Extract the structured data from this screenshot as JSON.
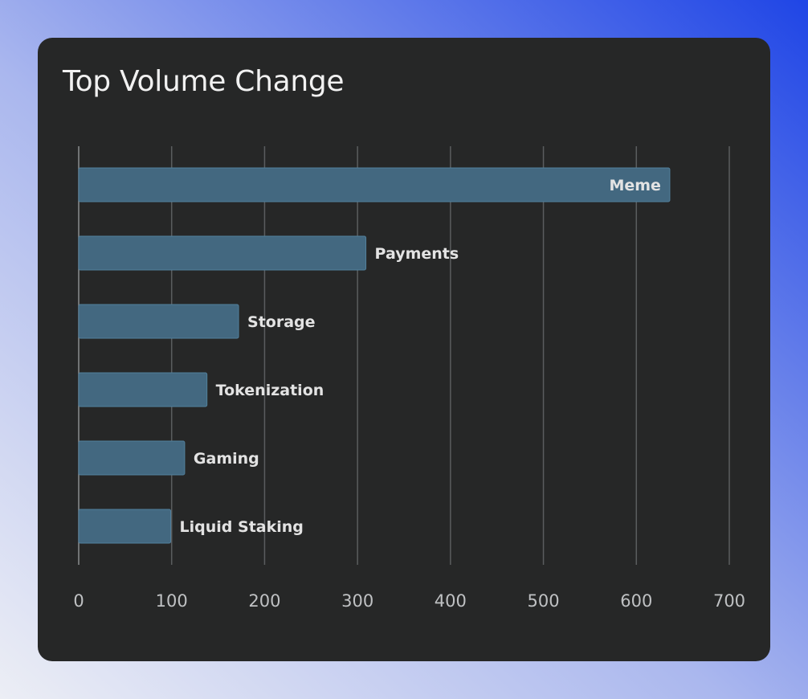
{
  "card": {
    "title": "Top Volume Change"
  },
  "chart_data": {
    "type": "bar",
    "orientation": "horizontal",
    "title": "Top Volume Change",
    "xlabel": "",
    "ylabel": "",
    "categories": [
      "Meme",
      "Payments",
      "Storage",
      "Tokenization",
      "Gaming",
      "Liquid Staking"
    ],
    "values": [
      636,
      309,
      172,
      138,
      114,
      99
    ],
    "xlim": [
      0,
      700
    ],
    "xticks": [
      0,
      100,
      200,
      300,
      400,
      500,
      600,
      700
    ],
    "grid": true,
    "legend": "none",
    "colors": {
      "bar": "#436880",
      "bar_border": "#52809c",
      "background": "#262727",
      "gridline": "#5a5d5f",
      "label": "#e3e3e3"
    }
  }
}
